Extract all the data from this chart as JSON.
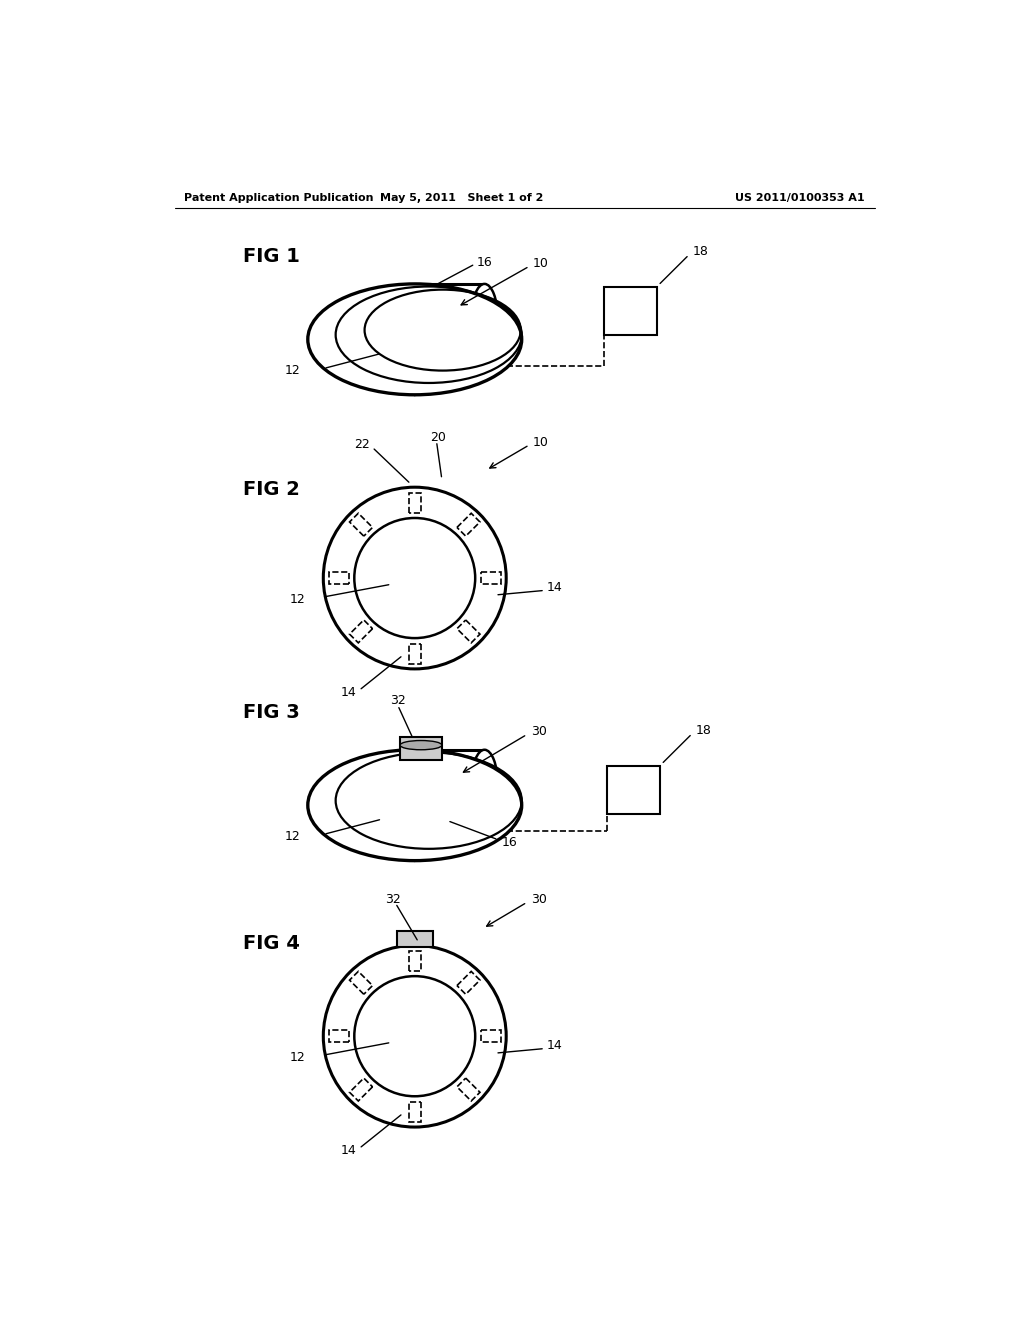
{
  "bg_color": "#ffffff",
  "header_left": "Patent Application Publication",
  "header_mid": "May 5, 2011   Sheet 1 of 2",
  "header_right": "US 2011/0100353 A1",
  "lc": "#000000",
  "lfs": 9,
  "flfs": 14,
  "hfs": 8
}
